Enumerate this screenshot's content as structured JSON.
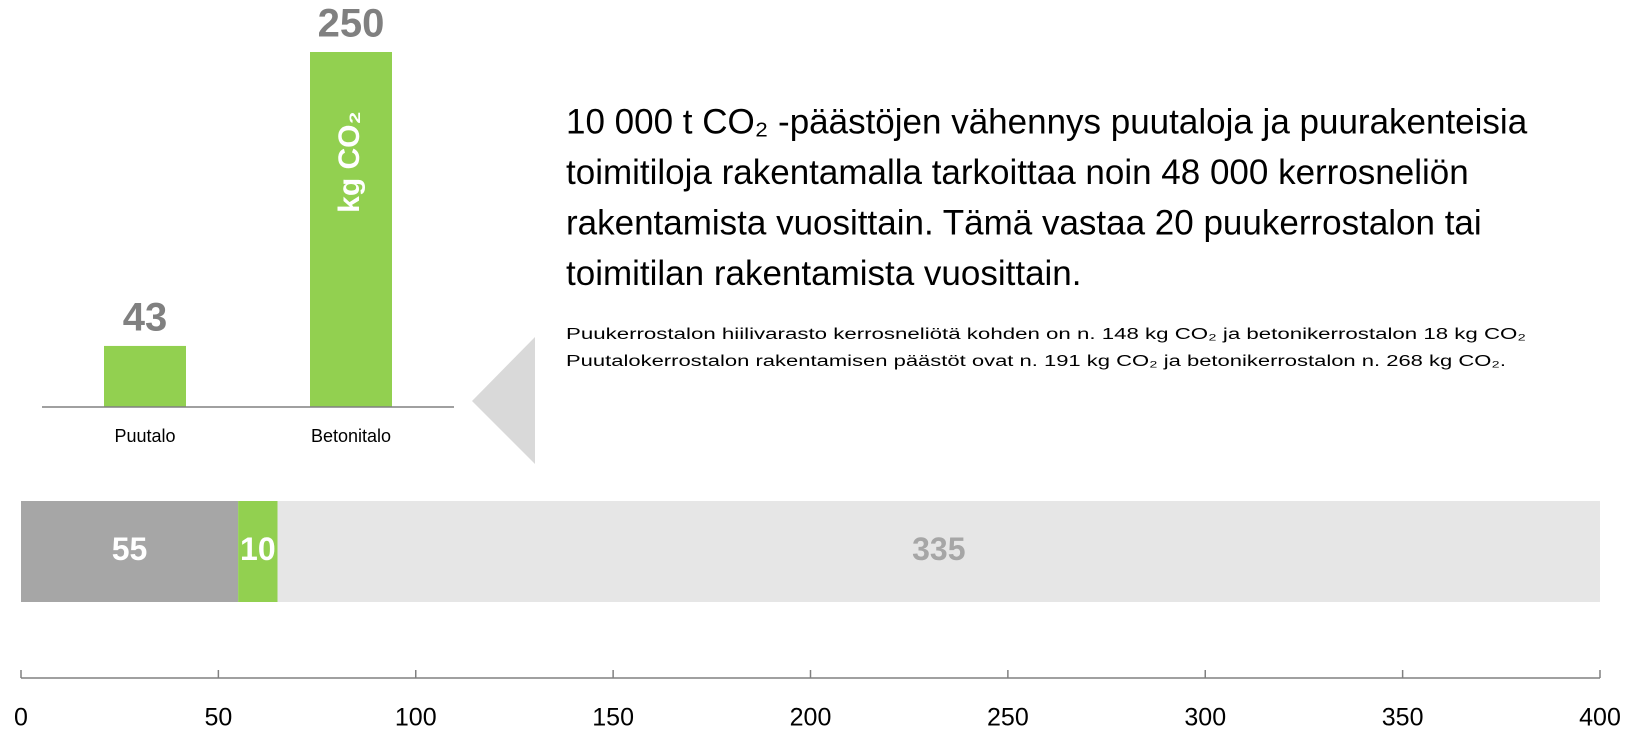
{
  "chart_data": [
    {
      "type": "bar",
      "categories": [
        "Puutalo",
        "Betonitalo"
      ],
      "values": [
        43,
        250
      ],
      "color": "#92d050",
      "ylim": [
        0,
        250
      ],
      "inner_label": "kg CO₂"
    },
    {
      "type": "stacked-hbar",
      "categories": [
        null
      ],
      "series": [
        {
          "color": "#a6a6a6",
          "values": [
            55
          ]
        },
        {
          "color": "#92d050",
          "values": [
            10
          ]
        },
        {
          "color": "#e6e6e6",
          "values": [
            335
          ]
        }
      ],
      "xlim": [
        0,
        400
      ],
      "xticks": [
        0,
        50,
        100,
        150,
        200,
        250,
        300,
        350,
        400
      ]
    }
  ],
  "text": {
    "headline": [
      "10 000 t CO₂ -päästöjen vähennys puutaloja ja puurakenteisia",
      "toimitiloja rakentamalla tarkoittaa noin 48 000 kerrosneliön",
      "rakentamista vuosittain. Tämä vastaa 20 puukerrostalon tai",
      "toimitilan rakentamista vuosittain."
    ],
    "notes": [
      "Puukerrostalon hiilivarasto kerrosneliötä kohden on n. 148 kg CO₂ ja betonikerrostalon 18 kg CO₂",
      "Puutalokerrostalon rakentamisen päästöt ovat n. 191 kg CO₂ ja betonikerrostalon n. 268 kg CO₂."
    ]
  }
}
